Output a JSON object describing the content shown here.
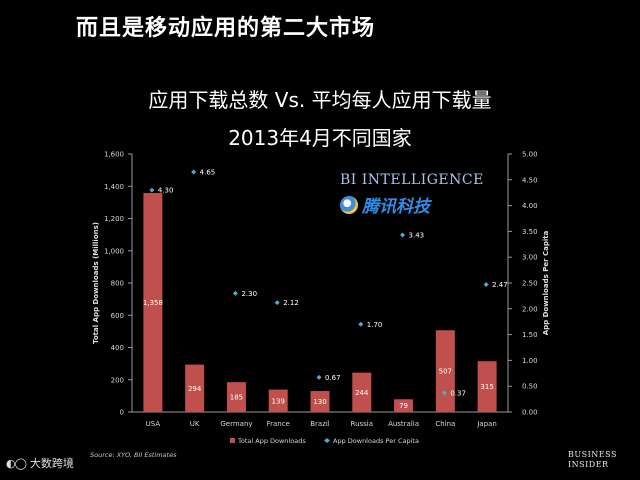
{
  "slide": {
    "title": "而且是移动应用的第二大市场",
    "source": "Source: XYO, BII Estimates",
    "business_insider": [
      "BUSINESS",
      "INSIDER"
    ],
    "corner_logo": "大数跨境",
    "watermark_bi": "BI INTELLIGENCE",
    "watermark_tencent": "腾讯科技"
  },
  "chart_data": {
    "type": "bar",
    "title": "应用下载总数 Vs. 平均每人应用下载量",
    "subtitle": "2013年4月不同国家",
    "categories": [
      "USA",
      "UK",
      "Germany",
      "France",
      "Brazil",
      "Russia",
      "Australia",
      "China",
      "Japan"
    ],
    "ylabel": "Total App Downloads (Millions)",
    "y2label": "App Downloads Per Capita",
    "ylim": [
      0,
      1600
    ],
    "y2lim": [
      0,
      5
    ],
    "yticks": [
      "0",
      "200",
      "400",
      "600",
      "800",
      "1,000",
      "1,200",
      "1,400",
      "1,600"
    ],
    "y2ticks": [
      "0.00",
      "0.50",
      "1.00",
      "1.50",
      "2.00",
      "2.50",
      "3.00",
      "3.50",
      "4.00",
      "4.50",
      "5.00"
    ],
    "series": [
      {
        "name": "Total App Downloads",
        "type": "bar",
        "axis": "left",
        "color": "#c0504d",
        "values": [
          1358,
          294,
          185,
          139,
          130,
          244,
          79,
          507,
          315
        ],
        "labels": [
          "1,358",
          "294",
          "185",
          "139",
          "130",
          "244",
          "79",
          "507",
          "315"
        ]
      },
      {
        "name": "App Downloads Per Capita",
        "type": "scatter",
        "axis": "right",
        "color": "#4bacc6",
        "values": [
          4.3,
          4.65,
          2.3,
          2.12,
          0.67,
          1.7,
          3.43,
          0.37,
          2.47
        ],
        "labels": [
          "4.30",
          "4.65",
          "2.30",
          "2.12",
          "0.67",
          "1.70",
          "3.43",
          "0.37",
          "2.47"
        ]
      }
    ],
    "legend_position": "bottom",
    "grid": false
  }
}
